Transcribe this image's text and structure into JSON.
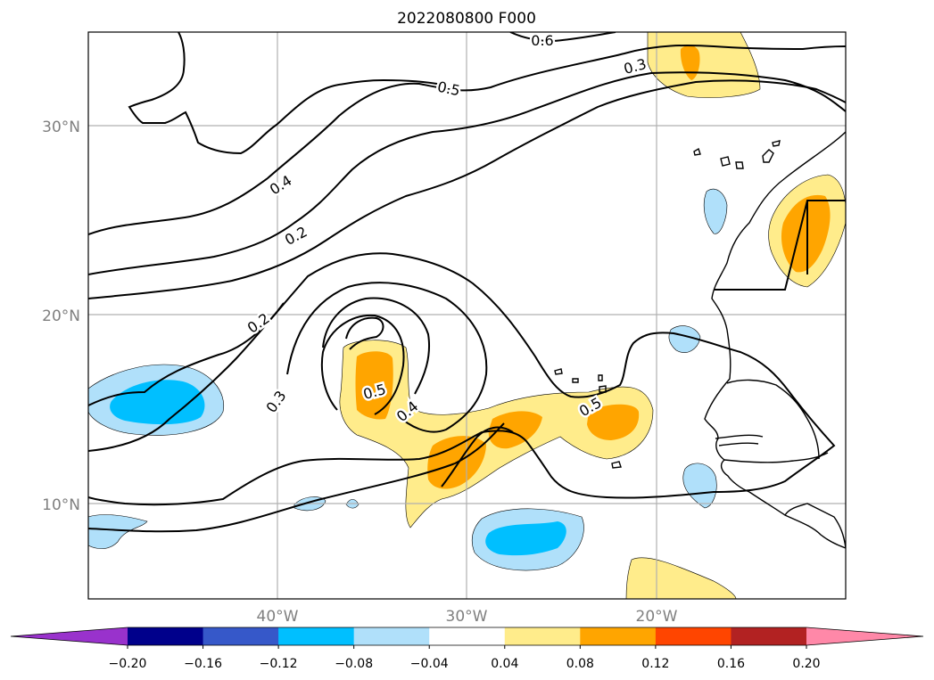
{
  "title": "2022080800 F000",
  "map": {
    "lon_range": [
      -50,
      -10
    ],
    "lat_range": [
      5,
      35
    ],
    "lat_ticks": [
      "30°N",
      "20°N",
      "10°N"
    ],
    "lon_ticks": [
      "40°W",
      "30°W",
      "20°W"
    ],
    "grid": true
  },
  "contour_labels": [
    "0.6",
    "0.5",
    "0.3",
    "0.4",
    "0.2",
    "0.2",
    "0.3",
    "0.5",
    "0.4",
    "0.5"
  ],
  "colorbar": {
    "orientation": "horizontal",
    "extend": "both",
    "colors": [
      "#9932cc",
      "#00008b",
      "#3658c9",
      "#00bfff",
      "#b0e0fa",
      "#ffffff",
      "#ffec8b",
      "#ffa500",
      "#ff4500",
      "#b22222",
      "#ff88a8"
    ],
    "tick_labels": [
      "−0.20",
      "−0.16",
      "−0.12",
      "−0.08",
      "−0.04",
      "0.04",
      "0.08",
      "0.12",
      "0.16",
      "0.20"
    ]
  }
}
